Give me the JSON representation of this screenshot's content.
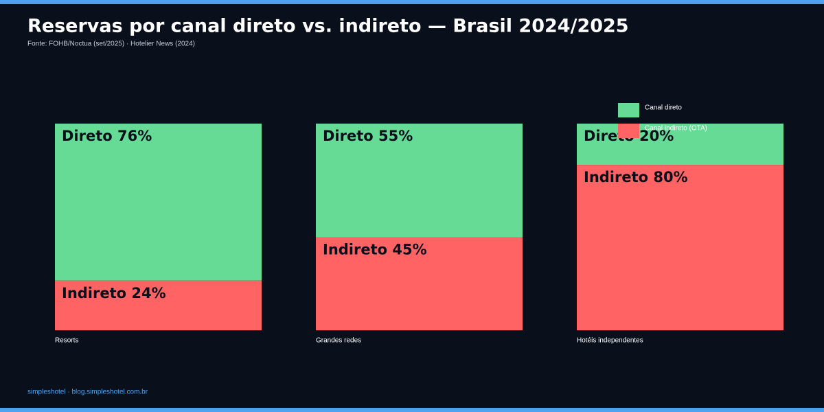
{
  "chart_data": {
    "type": "bar",
    "stacked": true,
    "title": "Reservas por canal direto vs. indireto — Brasil 2024/2025",
    "subtitle": "Fonte: FOHB/Noctua (set/2025) · Hotelier News (2024)",
    "footer": "simpleshotel · blog.simpleshotel.com.br",
    "categories": [
      "Resorts",
      "Grandes redes",
      "Hotéis independentes"
    ],
    "series": [
      {
        "name": "Canal direto",
        "color": "#66db96",
        "values": [
          76,
          55,
          20
        ],
        "value_labels": [
          "Direto 76%",
          "Direto 55%",
          "Direto 20%"
        ]
      },
      {
        "name": "Canal indireto (OTA)",
        "color": "#ff6363",
        "values": [
          24,
          45,
          80
        ],
        "value_labels": [
          "Indireto 24%",
          "Indireto 45%",
          "Indireto 80%"
        ]
      }
    ]
  }
}
